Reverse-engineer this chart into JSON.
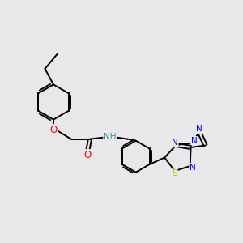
{
  "bg_color": "#e8e8eb",
  "bond_color": "#000000",
  "bond_width": 1.4,
  "atom_colors": {
    "O": "#ff0000",
    "N": "#0000ee",
    "S": "#bbbb00",
    "H": "#4a8f8f",
    "C": "#000000"
  },
  "font_size": 7.5,
  "fig_size": [
    3.0,
    3.0
  ],
  "dpi": 100
}
